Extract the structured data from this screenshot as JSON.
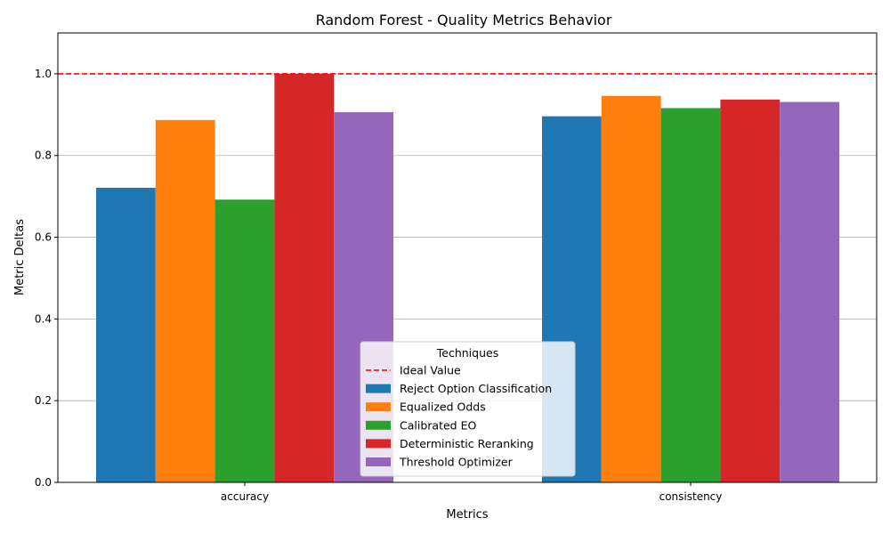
{
  "chart_data": {
    "type": "bar",
    "title": "Random Forest - Quality Metrics Behavior",
    "xlabel": "Metrics",
    "ylabel": "Metric Deltas",
    "categories": [
      "accuracy",
      "consistency"
    ],
    "ylim": [
      0,
      1.1
    ],
    "yticks": [
      0.0,
      0.2,
      0.4,
      0.6,
      0.8,
      1.0
    ],
    "ytick_labels": [
      "0.0",
      "0.2",
      "0.4",
      "0.6",
      "0.8",
      "1.0"
    ],
    "grid": "horizontal",
    "series": [
      {
        "name": "Reject Option Classification",
        "color": "#1f77b4",
        "values": [
          0.721,
          0.896
        ]
      },
      {
        "name": "Equalized Odds",
        "color": "#ff7f0e",
        "values": [
          0.887,
          0.946
        ]
      },
      {
        "name": "Calibrated EO",
        "color": "#2ca02c",
        "values": [
          0.692,
          0.916
        ]
      },
      {
        "name": "Deterministic Reranking",
        "color": "#d62728",
        "values": [
          1.0,
          0.937
        ]
      },
      {
        "name": "Threshold Optimizer",
        "color": "#9467bd",
        "values": [
          0.906,
          0.931
        ]
      }
    ],
    "reference_line": {
      "name": "Ideal Value",
      "value": 1.0,
      "color": "#ff0000",
      "style": "dashed"
    },
    "legend": {
      "title": "Techniques",
      "position": "lower-center"
    }
  }
}
